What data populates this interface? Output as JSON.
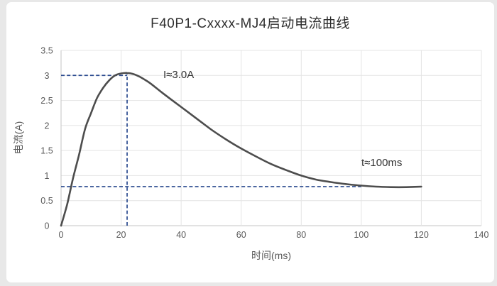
{
  "colors": {
    "page_bg": "#e8e8e8",
    "panel_bg": "#ffffff",
    "curve": "#4d4d4d",
    "dashed": "#2a4a8f",
    "grid": "#e4e4e4",
    "axis": "#c6c6c6",
    "tick_text": "#595959",
    "title_text": "#2f2f2f",
    "annotation_text": "#333333"
  },
  "chart_data": {
    "type": "line",
    "title": "F40P1-Cxxxx-MJ4启动电流曲线",
    "xlabel": "时间(ms)",
    "ylabel": "电流(A)",
    "xlim": [
      0,
      140
    ],
    "ylim": [
      0,
      3.5
    ],
    "x_ticks": [
      0,
      20,
      40,
      60,
      80,
      100,
      120,
      140
    ],
    "y_ticks": [
      0,
      0.5,
      1,
      1.5,
      2,
      2.5,
      3,
      3.5
    ],
    "grid": true,
    "legend": false,
    "series": [
      {
        "name": "启动电流",
        "color": "#4d4d4d",
        "x": [
          0,
          2,
          4,
          6,
          8,
          10,
          12,
          14,
          16,
          18,
          20,
          22,
          24,
          26,
          28,
          30,
          34,
          38,
          42,
          46,
          50,
          55,
          60,
          65,
          70,
          75,
          80,
          85,
          90,
          95,
          100,
          105,
          110,
          115,
          120
        ],
        "y": [
          0,
          0.42,
          0.95,
          1.42,
          1.93,
          2.25,
          2.55,
          2.75,
          2.9,
          3.0,
          3.04,
          3.05,
          3.03,
          2.98,
          2.91,
          2.83,
          2.64,
          2.46,
          2.28,
          2.1,
          1.92,
          1.72,
          1.54,
          1.38,
          1.23,
          1.11,
          1.0,
          0.92,
          0.87,
          0.83,
          0.8,
          0.78,
          0.77,
          0.77,
          0.78
        ]
      }
    ],
    "reference_lines": [
      {
        "orientation": "h",
        "y": 3.0,
        "x_from": 0,
        "x_to": 22,
        "style": "dashed",
        "color": "#2a4a8f"
      },
      {
        "orientation": "v",
        "x": 22,
        "y_from": 0,
        "y_to": 3.05,
        "style": "dashed",
        "color": "#2a4a8f"
      },
      {
        "orientation": "h",
        "y": 0.78,
        "x_from": 0,
        "x_to": 100,
        "style": "dashed",
        "color": "#2a4a8f"
      }
    ],
    "annotations": [
      {
        "text": "I≈3.0A",
        "x": 34,
        "y": 3.0
      },
      {
        "text": "t≈100ms",
        "x": 100,
        "y": 1.25
      }
    ],
    "readings": {
      "peak_current_a": 3.0,
      "peak_time_ms": 22,
      "steady_current_a": 0.78,
      "settle_time_ms": 100
    }
  }
}
